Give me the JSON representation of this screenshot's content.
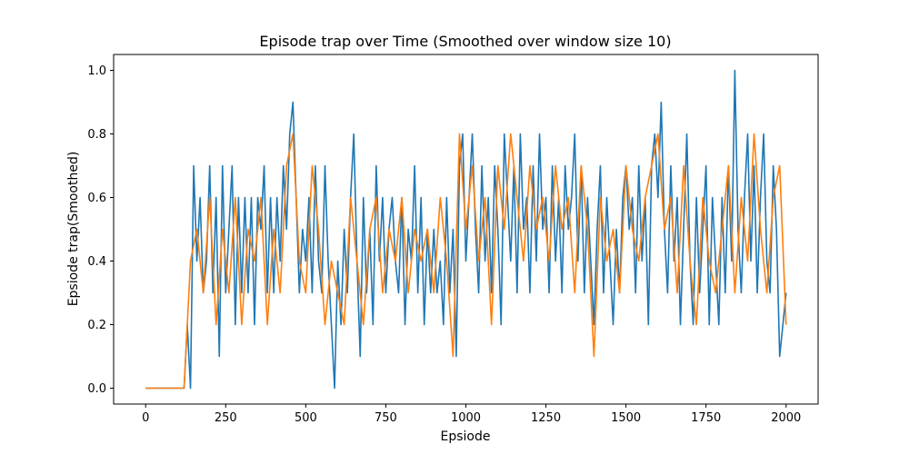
{
  "chart_data": {
    "type": "line",
    "title": "Episode trap over Time (Smoothed over window size 10)",
    "xlabel": "Epsiode",
    "ylabel": "Epsiode trap(Smoothed)",
    "xlim": [
      -100,
      2100
    ],
    "ylim": [
      -0.05,
      1.05
    ],
    "xticks": [
      0,
      250,
      500,
      750,
      1000,
      1250,
      1500,
      1750,
      2000
    ],
    "yticks": [
      {
        "value": 0,
        "label": "0.0"
      },
      0.2,
      0.4,
      0.6,
      0.8,
      {
        "value": 1,
        "label": "1.0"
      }
    ],
    "grid": false,
    "series": [
      {
        "color": "#1f77b4",
        "x": [
          0,
          10,
          20,
          30,
          40,
          50,
          60,
          70,
          80,
          90,
          100,
          110,
          120,
          130,
          140,
          150,
          160,
          170,
          180,
          190,
          200,
          210,
          220,
          230,
          240,
          250,
          260,
          270,
          280,
          290,
          300,
          310,
          320,
          330,
          340,
          350,
          360,
          370,
          380,
          390,
          400,
          410,
          420,
          430,
          440,
          450,
          460,
          470,
          480,
          490,
          500,
          510,
          520,
          530,
          540,
          550,
          560,
          570,
          580,
          590,
          600,
          610,
          620,
          630,
          640,
          650,
          660,
          670,
          680,
          690,
          700,
          710,
          720,
          730,
          740,
          750,
          760,
          770,
          780,
          790,
          800,
          810,
          820,
          830,
          840,
          850,
          860,
          870,
          880,
          890,
          900,
          910,
          920,
          930,
          940,
          950,
          960,
          970,
          980,
          990,
          1000,
          1010,
          1020,
          1030,
          1040,
          1050,
          1060,
          1070,
          1080,
          1090,
          1100,
          1110,
          1120,
          1130,
          1140,
          1150,
          1160,
          1170,
          1180,
          1190,
          1200,
          1210,
          1220,
          1230,
          1240,
          1250,
          1260,
          1270,
          1280,
          1290,
          1300,
          1310,
          1320,
          1330,
          1340,
          1350,
          1360,
          1370,
          1380,
          1390,
          1400,
          1410,
          1420,
          1430,
          1440,
          1450,
          1460,
          1470,
          1480,
          1490,
          1500,
          1510,
          1520,
          1530,
          1540,
          1550,
          1560,
          1570,
          1580,
          1590,
          1600,
          1610,
          1620,
          1630,
          1640,
          1650,
          1660,
          1670,
          1680,
          1690,
          1700,
          1710,
          1720,
          1730,
          1740,
          1750,
          1760,
          1770,
          1780,
          1790,
          1800,
          1810,
          1820,
          1830,
          1840,
          1850,
          1860,
          1870,
          1880,
          1890,
          1900,
          1910,
          1920,
          1930,
          1940,
          1950,
          1960,
          1970,
          1980,
          1990,
          2000
        ],
        "values": [
          0,
          0,
          0,
          0,
          0,
          0,
          0,
          0,
          0,
          0,
          0,
          0,
          0,
          0.2,
          0,
          0.7,
          0.4,
          0.6,
          0.3,
          0.4,
          0.7,
          0.3,
          0.6,
          0.1,
          0.7,
          0.3,
          0.5,
          0.7,
          0.2,
          0.6,
          0.3,
          0.6,
          0.3,
          0.6,
          0.2,
          0.6,
          0.5,
          0.7,
          0.3,
          0.6,
          0.3,
          0.6,
          0.4,
          0.7,
          0.5,
          0.8,
          0.9,
          0.6,
          0.3,
          0.5,
          0.4,
          0.6,
          0.3,
          0.7,
          0.4,
          0.3,
          0.7,
          0.4,
          0.2,
          0.0,
          0.4,
          0.2,
          0.5,
          0.3,
          0.6,
          0.8,
          0.4,
          0.1,
          0.6,
          0.3,
          0.5,
          0.2,
          0.7,
          0.4,
          0.6,
          0.3,
          0.5,
          0.6,
          0.4,
          0.3,
          0.6,
          0.2,
          0.5,
          0.4,
          0.7,
          0.3,
          0.6,
          0.2,
          0.5,
          0.3,
          0.5,
          0.3,
          0.4,
          0.2,
          0.6,
          0.3,
          0.5,
          0.1,
          0.7,
          0.8,
          0.4,
          0.6,
          0.8,
          0.5,
          0.3,
          0.7,
          0.4,
          0.6,
          0.3,
          0.7,
          0.5,
          0.2,
          0.8,
          0.6,
          0.4,
          0.7,
          0.3,
          0.8,
          0.5,
          0.6,
          0.3,
          0.7,
          0.4,
          0.8,
          0.5,
          0.6,
          0.3,
          0.7,
          0.4,
          0.6,
          0.3,
          0.7,
          0.5,
          0.6,
          0.8,
          0.4,
          0.7,
          0.3,
          0.6,
          0.4,
          0.2,
          0.5,
          0.7,
          0.3,
          0.6,
          0.4,
          0.2,
          0.5,
          0.3,
          0.6,
          0.7,
          0.5,
          0.6,
          0.3,
          0.7,
          0.4,
          0.6,
          0.2,
          0.7,
          0.8,
          0.6,
          0.9,
          0.5,
          0.3,
          0.7,
          0.4,
          0.6,
          0.2,
          0.5,
          0.8,
          0.4,
          0.2,
          0.6,
          0.3,
          0.5,
          0.7,
          0.2,
          0.6,
          0.4,
          0.2,
          0.6,
          0.3,
          0.7,
          0.4,
          1.0,
          0.5,
          0.3,
          0.6,
          0.8,
          0.4,
          0.7,
          0.3,
          0.6,
          0.8,
          0.4,
          0.3,
          0.7,
          0.5,
          0.1,
          0.2,
          0.3
        ]
      },
      {
        "color": "#ff7f0e",
        "x": [
          0,
          20,
          40,
          60,
          80,
          100,
          120,
          140,
          160,
          180,
          200,
          220,
          240,
          260,
          280,
          300,
          320,
          340,
          360,
          380,
          400,
          420,
          440,
          460,
          480,
          500,
          520,
          540,
          560,
          580,
          600,
          620,
          640,
          660,
          680,
          700,
          720,
          740,
          760,
          780,
          800,
          820,
          840,
          860,
          880,
          900,
          920,
          940,
          960,
          980,
          1000,
          1020,
          1040,
          1060,
          1080,
          1100,
          1120,
          1140,
          1160,
          1180,
          1200,
          1220,
          1240,
          1260,
          1280,
          1300,
          1320,
          1340,
          1360,
          1380,
          1400,
          1420,
          1440,
          1460,
          1480,
          1500,
          1520,
          1540,
          1560,
          1580,
          1600,
          1620,
          1640,
          1660,
          1680,
          1700,
          1720,
          1740,
          1760,
          1780,
          1800,
          1820,
          1840,
          1860,
          1880,
          1900,
          1920,
          1940,
          1960,
          1980,
          2000
        ],
        "values": [
          0,
          0,
          0,
          0,
          0,
          0,
          0,
          0.4,
          0.5,
          0.3,
          0.6,
          0.2,
          0.5,
          0.3,
          0.6,
          0.2,
          0.5,
          0.4,
          0.6,
          0.2,
          0.5,
          0.3,
          0.7,
          0.8,
          0.4,
          0.3,
          0.7,
          0.5,
          0.2,
          0.4,
          0.3,
          0.2,
          0.6,
          0.4,
          0.2,
          0.5,
          0.6,
          0.3,
          0.5,
          0.4,
          0.6,
          0.3,
          0.5,
          0.4,
          0.5,
          0.3,
          0.6,
          0.4,
          0.1,
          0.8,
          0.5,
          0.7,
          0.4,
          0.6,
          0.2,
          0.7,
          0.5,
          0.8,
          0.6,
          0.4,
          0.7,
          0.5,
          0.6,
          0.4,
          0.7,
          0.5,
          0.6,
          0.3,
          0.7,
          0.5,
          0.1,
          0.6,
          0.4,
          0.5,
          0.3,
          0.7,
          0.5,
          0.4,
          0.6,
          0.7,
          0.8,
          0.5,
          0.6,
          0.3,
          0.7,
          0.4,
          0.2,
          0.6,
          0.4,
          0.3,
          0.5,
          0.7,
          0.3,
          0.6,
          0.4,
          0.8,
          0.5,
          0.3,
          0.6,
          0.7,
          0.2
        ]
      }
    ]
  }
}
